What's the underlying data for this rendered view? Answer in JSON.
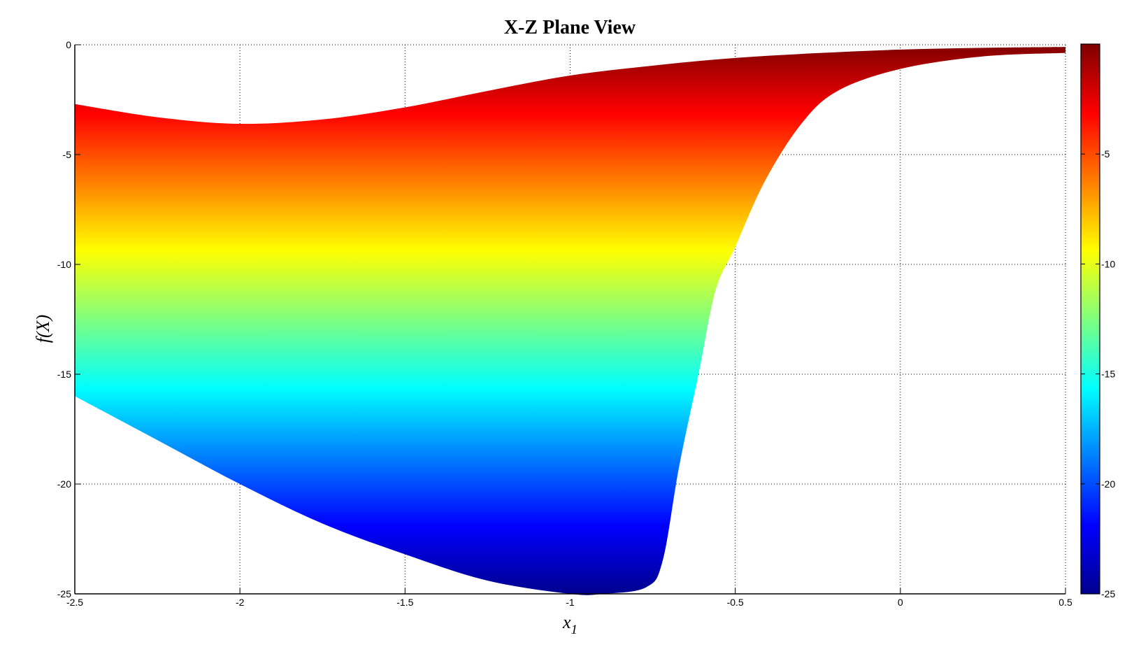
{
  "chart_data": {
    "type": "area",
    "title": "X-Z Plane View",
    "xlabel": "x",
    "xlabel_subscript": "1",
    "ylabel": "f(X)",
    "xlim": [
      -2.5,
      0.5
    ],
    "ylim": [
      -25,
      0
    ],
    "xticks": [
      -2.5,
      -2,
      -1.5,
      -1,
      -0.5,
      0,
      0.5
    ],
    "xtick_labels": [
      "-2.5",
      "-2",
      "-1.5",
      "-1",
      "-0.5",
      "0",
      "0.5"
    ],
    "yticks": [
      0,
      -5,
      -10,
      -15,
      -20,
      -25
    ],
    "ytick_labels": [
      "0",
      "-5",
      "-10",
      "-15",
      "-20",
      "-25"
    ],
    "grid": true,
    "colormap": "jet",
    "colorbar": {
      "position": "right",
      "range": [
        -25,
        0
      ],
      "ticks": [
        -5,
        -10,
        -15,
        -20,
        -25
      ],
      "tick_labels": [
        "-5",
        "-10",
        "-15",
        "-20",
        "-25"
      ]
    },
    "upper_boundary": {
      "x": [
        -2.5,
        -2.25,
        -2.0,
        -1.75,
        -1.5,
        -1.25,
        -1.0,
        -0.75,
        -0.5,
        -0.25,
        0.0,
        0.25,
        0.5
      ],
      "y": [
        -2.7,
        -3.3,
        -3.6,
        -3.4,
        -2.85,
        -2.1,
        -1.4,
        -0.95,
        -0.6,
        -0.38,
        -0.22,
        -0.14,
        -0.1
      ]
    },
    "lower_boundary": {
      "x": [
        -2.5,
        -2.25,
        -2.0,
        -1.75,
        -1.5,
        -1.25,
        -1.0,
        -0.9,
        -0.77,
        -0.72,
        -0.67,
        -0.61,
        -0.56,
        -0.5,
        -0.41,
        -0.3,
        -0.19,
        0.0,
        0.25,
        0.5
      ],
      "y": [
        -16.0,
        -18.0,
        -20.0,
        -21.8,
        -23.2,
        -24.4,
        -25.0,
        -25.0,
        -24.7,
        -23.5,
        -19.2,
        -14.9,
        -11.2,
        -9.2,
        -6.2,
        -3.6,
        -2.1,
        -1.1,
        -0.53,
        -0.37
      ]
    }
  }
}
